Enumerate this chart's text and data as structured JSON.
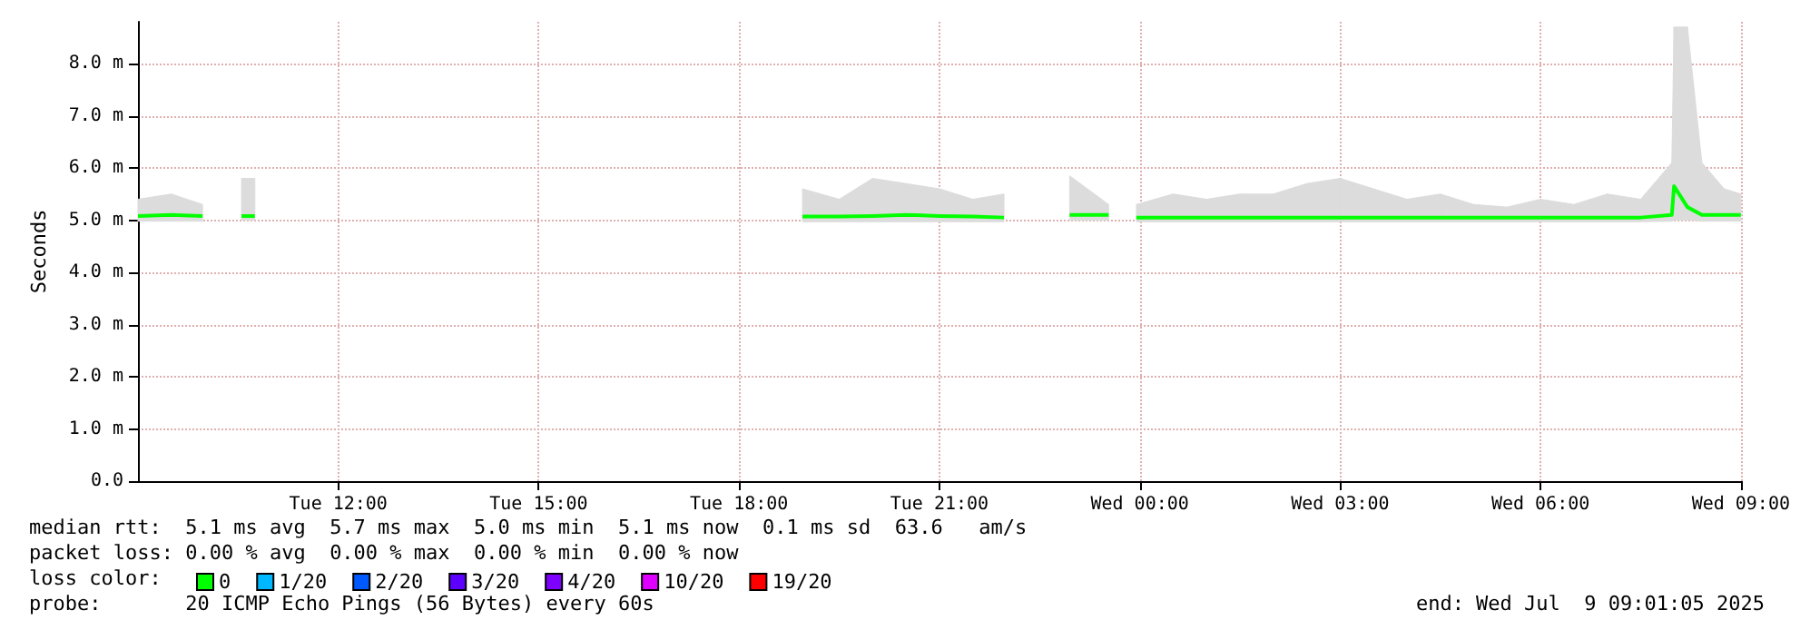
{
  "chart_data": {
    "type": "line",
    "ylabel": "Seconds",
    "x": [
      "2025-07-08T09:00",
      "2025-07-08T09:30",
      "2025-07-08T09:58",
      "2025-07-08T10:15",
      "2025-07-08T10:33",
      "2025-07-08T10:45",
      "2025-07-08T11:00",
      "2025-07-08T18:57",
      "2025-07-08T19:30",
      "2025-07-08T20:00",
      "2025-07-08T20:30",
      "2025-07-08T21:00",
      "2025-07-08T21:30",
      "2025-07-08T21:58",
      "2025-07-08T22:30",
      "2025-07-08T22:57",
      "2025-07-08T23:32",
      "2025-07-08T23:45",
      "2025-07-08T23:57",
      "2025-07-09T00:30",
      "2025-07-09T01:00",
      "2025-07-09T01:30",
      "2025-07-09T02:00",
      "2025-07-09T02:30",
      "2025-07-09T03:00",
      "2025-07-09T03:30",
      "2025-07-09T04:00",
      "2025-07-09T04:30",
      "2025-07-09T05:00",
      "2025-07-09T05:30",
      "2025-07-09T06:00",
      "2025-07-09T06:30",
      "2025-07-09T07:00",
      "2025-07-09T07:30",
      "2025-07-09T07:58",
      "2025-07-09T08:00",
      "2025-07-09T08:12",
      "2025-07-09T08:25",
      "2025-07-09T08:45",
      "2025-07-09T09:00"
    ],
    "series": [
      {
        "name": "0",
        "color": "#00ff00",
        "values": [
          5.08,
          5.1,
          5.08,
          null,
          5.08,
          5.08,
          null,
          5.07,
          5.07,
          5.08,
          5.1,
          5.08,
          5.07,
          5.05,
          null,
          5.1,
          5.1,
          null,
          5.05,
          5.05,
          5.05,
          5.05,
          5.05,
          5.05,
          5.05,
          5.05,
          5.05,
          5.05,
          5.05,
          5.05,
          5.05,
          5.05,
          5.05,
          5.05,
          5.1,
          5.65,
          5.25,
          5.1,
          5.1,
          5.1
        ],
        "lower": [
          4.98,
          4.98,
          4.98,
          null,
          5.0,
          5.0,
          null,
          4.97,
          4.97,
          4.97,
          4.97,
          4.97,
          4.97,
          4.97,
          null,
          5.0,
          5.0,
          null,
          4.97,
          4.97,
          4.97,
          4.97,
          4.97,
          4.97,
          4.97,
          4.97,
          4.97,
          4.97,
          4.97,
          4.97,
          4.97,
          4.97,
          4.97,
          4.97,
          4.98,
          5.0,
          5.0,
          4.98,
          4.98,
          4.98
        ],
        "upper": [
          5.4,
          5.5,
          5.3,
          null,
          5.8,
          5.8,
          null,
          5.6,
          5.4,
          5.8,
          5.7,
          5.6,
          5.4,
          5.5,
          null,
          5.85,
          5.3,
          null,
          5.3,
          5.5,
          5.4,
          5.5,
          5.5,
          5.7,
          5.8,
          5.6,
          5.4,
          5.5,
          5.3,
          5.25,
          5.4,
          5.3,
          5.5,
          5.4,
          6.1,
          8.7,
          8.7,
          6.1,
          5.6,
          5.5
        ]
      },
      {
        "name": "1/20",
        "color": "#00b8ff",
        "values": [
          null,
          null,
          null,
          null,
          null,
          null,
          null,
          null,
          null,
          null,
          null,
          null,
          null,
          null,
          null,
          null,
          null,
          null,
          null,
          null,
          null,
          null,
          null,
          null,
          null,
          null,
          null,
          null,
          null,
          null,
          null,
          null,
          null,
          null,
          null,
          null,
          null,
          null,
          null,
          null
        ]
      },
      {
        "name": "2/20",
        "color": "#0059ff",
        "values": [
          null,
          null,
          null,
          null,
          null,
          null,
          null,
          null,
          null,
          null,
          null,
          null,
          null,
          null,
          null,
          null,
          null,
          null,
          null,
          null,
          null,
          null,
          null,
          null,
          null,
          null,
          null,
          null,
          null,
          null,
          null,
          null,
          null,
          null,
          null,
          null,
          null,
          null,
          null,
          null
        ]
      },
      {
        "name": "3/20",
        "color": "#5e00ff",
        "values": [
          null,
          null,
          null,
          null,
          null,
          null,
          null,
          null,
          null,
          null,
          null,
          null,
          null,
          null,
          null,
          null,
          null,
          null,
          null,
          null,
          null,
          null,
          null,
          null,
          null,
          null,
          null,
          null,
          null,
          null,
          null,
          null,
          null,
          null,
          null,
          null,
          null,
          null,
          null,
          null
        ]
      },
      {
        "name": "4/20",
        "color": "#7e00ff",
        "values": [
          null,
          null,
          null,
          null,
          null,
          null,
          null,
          null,
          null,
          null,
          null,
          null,
          null,
          null,
          null,
          null,
          null,
          null,
          null,
          null,
          null,
          null,
          null,
          null,
          null,
          null,
          null,
          null,
          null,
          null,
          null,
          null,
          null,
          null,
          null,
          null,
          null,
          null,
          null,
          null
        ]
      },
      {
        "name": "10/20",
        "color": "#dd00ff",
        "values": [
          null,
          null,
          null,
          null,
          null,
          null,
          null,
          null,
          null,
          null,
          null,
          null,
          null,
          null,
          null,
          null,
          null,
          null,
          null,
          null,
          null,
          null,
          null,
          null,
          null,
          null,
          null,
          null,
          null,
          null,
          null,
          null,
          null,
          null,
          null,
          null,
          null,
          null,
          null,
          null
        ]
      },
      {
        "name": "19/20",
        "color": "#ff0000",
        "values": [
          null,
          null,
          null,
          null,
          null,
          null,
          null,
          null,
          null,
          null,
          null,
          null,
          null,
          null,
          null,
          null,
          null,
          null,
          null,
          null,
          null,
          null,
          null,
          null,
          null,
          null,
          null,
          null,
          null,
          null,
          null,
          null,
          null,
          null,
          null,
          null,
          null,
          null,
          null,
          null
        ]
      }
    ],
    "legend": "bottom",
    "legend_title": "loss color:",
    "line_style": "solid",
    "grid": true,
    "xlim": [
      "2025-07-08T09:00",
      "2025-07-09T09:00"
    ],
    "xticks": [
      {
        "value": "2025-07-08T12:00",
        "label": "Tue 12:00"
      },
      {
        "value": "2025-07-08T15:00",
        "label": "Tue 15:00"
      },
      {
        "value": "2025-07-08T18:00",
        "label": "Tue 18:00"
      },
      {
        "value": "2025-07-08T21:00",
        "label": "Tue 21:00"
      },
      {
        "value": "2025-07-09T00:00",
        "label": "Wed 00:00"
      },
      {
        "value": "2025-07-09T03:00",
        "label": "Wed 03:00"
      },
      {
        "value": "2025-07-09T06:00",
        "label": "Wed 06:00"
      },
      {
        "value": "2025-07-09T09:00",
        "label": "Wed 09:00"
      }
    ],
    "ylim": [
      0,
      8.8
    ],
    "yticks": [
      {
        "value": 0,
        "label": "0.0"
      },
      {
        "value": 1,
        "label": "1.0 m"
      },
      {
        "value": 2,
        "label": "2.0 m"
      },
      {
        "value": 3,
        "label": "3.0 m"
      },
      {
        "value": 4,
        "label": "4.0 m"
      },
      {
        "value": 5,
        "label": "5.0 m"
      },
      {
        "value": 6,
        "label": "6.0 m"
      },
      {
        "value": 7,
        "label": "7.0 m"
      },
      {
        "value": 8,
        "label": "8.0 m"
      }
    ],
    "annotations": [
      "median rtt:  5.1 ms avg  5.7 ms max  5.0 ms min  5.1 ms now  0.1 ms sd  63.6   am/s",
      "packet loss: 0.00 % avg  0.00 % max  0.00 % min  0.00 % now",
      "probe:       20 ICMP Echo Pings (56 Bytes) every 60s",
      "end: Wed Jul  9 09:01:05 2025"
    ]
  }
}
